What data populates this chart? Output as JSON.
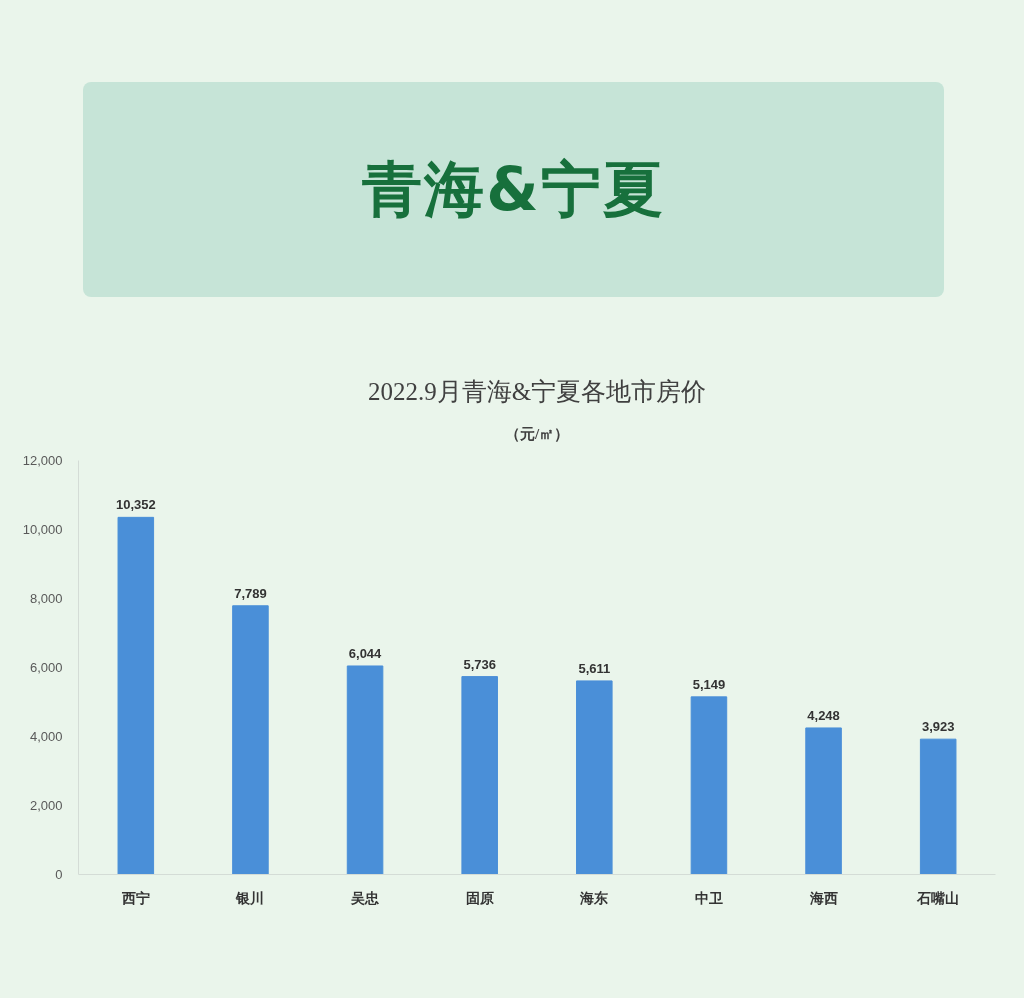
{
  "chart_data": {
    "type": "bar",
    "title": "青海&宁夏",
    "subtitle": "2022.9月青海&宁夏各地市房价",
    "annotations": [
      "（元/㎡）"
    ],
    "categories": [
      "西宁",
      "银川",
      "吴忠",
      "固原",
      "海东",
      "中卫",
      "海西",
      "石嘴山"
    ],
    "values": [
      10352,
      7789,
      6044,
      5736,
      5611,
      5149,
      4248,
      3923
    ],
    "color": "#4a8fd8",
    "value_labels": [
      "10,352",
      "7,789",
      "6,044",
      "5,736",
      "5,611",
      "5,149",
      "4,248",
      "3,923"
    ],
    "ylim": [
      0,
      12000
    ],
    "yticks": [
      0,
      {
        "value": 2000,
        "label": "2,000"
      },
      {
        "value": 4000,
        "label": "4,000"
      },
      {
        "value": 6000,
        "label": "6,000"
      },
      {
        "value": 8000,
        "label": "8,000"
      },
      {
        "value": 10000,
        "label": "10,000"
      },
      {
        "value": 12000,
        "label": "12,000"
      }
    ],
    "grid": false
  }
}
